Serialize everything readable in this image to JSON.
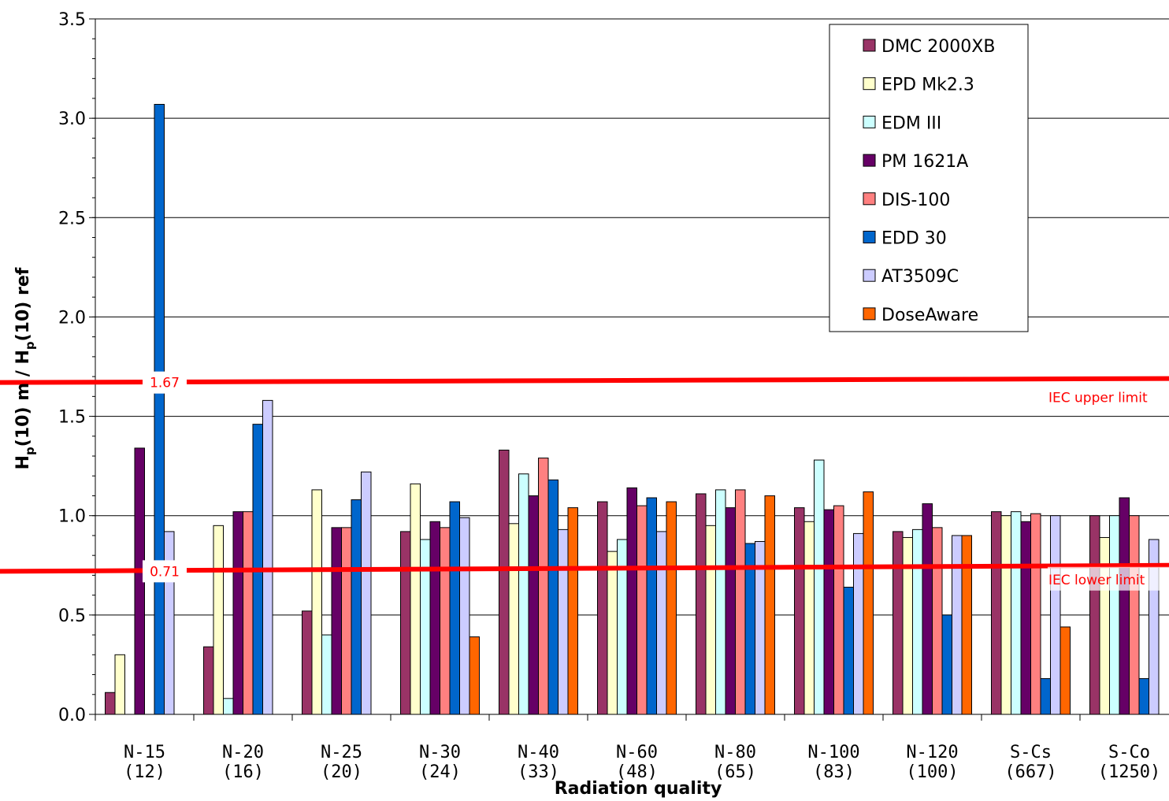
{
  "chart_data": {
    "type": "bar",
    "title": "",
    "xlabel": "Radiation quality",
    "ylabel_parts": [
      "H",
      "p",
      "(10) m / H",
      "p",
      "(10) ref"
    ],
    "ylim": [
      0,
      3.5
    ],
    "yticks": [
      "0.0",
      "0.5",
      "1.0",
      "1.5",
      "2.0",
      "2.5",
      "3.0",
      "3.5"
    ],
    "grid": true,
    "legend_position": "top-right",
    "categories": [
      {
        "name": "N-15",
        "energy": "(12)"
      },
      {
        "name": "N-20",
        "energy": "(16)"
      },
      {
        "name": "N-25",
        "energy": "(20)"
      },
      {
        "name": "N-30",
        "energy": "(24)"
      },
      {
        "name": "N-40",
        "energy": "(33)"
      },
      {
        "name": "N-60",
        "energy": "(48)"
      },
      {
        "name": "N-80",
        "energy": "(65)"
      },
      {
        "name": "N-100",
        "energy": "(83)"
      },
      {
        "name": "N-120",
        "energy": "(100)"
      },
      {
        "name": "S-Cs",
        "energy": "(667)"
      },
      {
        "name": "S-Co",
        "energy": "(1250)"
      }
    ],
    "series": [
      {
        "name": "DMC 2000XB",
        "color": "#993366",
        "values": [
          0.11,
          0.34,
          0.52,
          0.92,
          1.33,
          1.07,
          1.11,
          1.04,
          0.92,
          1.02,
          1.0
        ]
      },
      {
        "name": "EPD Mk2.3",
        "color": "#ffffcc",
        "values": [
          0.3,
          0.95,
          1.13,
          1.16,
          0.96,
          0.82,
          0.95,
          0.97,
          0.89,
          1.0,
          0.89
        ]
      },
      {
        "name": "EDM III",
        "color": "#ccffff",
        "values": [
          null,
          0.08,
          0.4,
          0.88,
          1.21,
          0.88,
          1.13,
          1.28,
          0.93,
          1.02,
          1.0
        ]
      },
      {
        "name": "PM 1621A",
        "color": "#660066",
        "values": [
          1.34,
          1.02,
          0.94,
          0.97,
          1.1,
          1.14,
          1.04,
          1.03,
          1.06,
          0.97,
          1.09
        ]
      },
      {
        "name": "DIS-100",
        "color": "#ff8080",
        "values": [
          null,
          1.02,
          0.94,
          0.94,
          1.29,
          1.05,
          1.13,
          1.05,
          0.94,
          1.01,
          1.0
        ]
      },
      {
        "name": "EDD 30",
        "color": "#0066cc",
        "values": [
          3.07,
          1.46,
          1.08,
          1.07,
          1.18,
          1.09,
          0.86,
          0.64,
          0.5,
          0.18,
          0.18
        ]
      },
      {
        "name": "AT3509C",
        "color": "#ccccff",
        "values": [
          0.92,
          1.58,
          1.22,
          0.99,
          0.93,
          0.92,
          0.87,
          0.91,
          0.9,
          1.0,
          0.88
        ]
      },
      {
        "name": "DoseAware",
        "color": "#ff6600",
        "values": [
          null,
          null,
          null,
          0.39,
          1.04,
          1.07,
          1.1,
          1.12,
          0.9,
          0.44,
          null
        ]
      }
    ],
    "limits": [
      {
        "label": "1.67",
        "name": "IEC upper limit",
        "left_value": 1.67,
        "right_value": 1.69,
        "color": "#ff0000"
      },
      {
        "label": "0.71",
        "name": "IEC lower limit",
        "left_value": 0.72,
        "right_value": 0.75,
        "color": "#ff0000"
      }
    ]
  }
}
